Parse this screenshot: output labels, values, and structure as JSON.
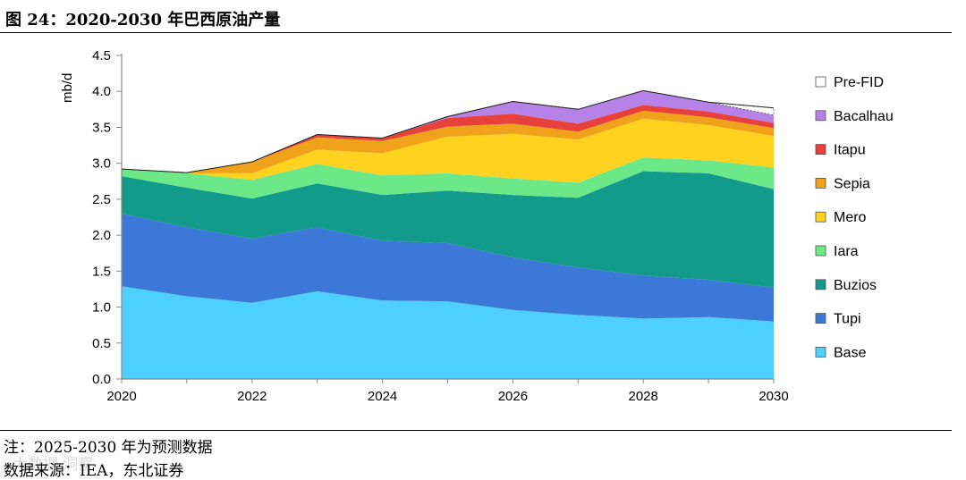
{
  "figure": {
    "title": "图 24：2020-2030 年巴西原油产量",
    "note": "注：2025-2030 年为预测数据",
    "source": "数据来源：IEA，东北证券",
    "watermark": "大数据 洞察"
  },
  "chart_data": {
    "type": "area",
    "stacked": true,
    "title": "",
    "xlabel": "",
    "ylabel": "mb/d",
    "xlim": [
      2020,
      2030
    ],
    "ylim": [
      0,
      4.5
    ],
    "x": [
      2020,
      2021,
      2022,
      2023,
      2024,
      2025,
      2026,
      2027,
      2028,
      2029,
      2030
    ],
    "x_ticks": [
      "2020",
      "2022",
      "2024",
      "2026",
      "2028",
      "2030"
    ],
    "y_ticks": [
      "0.0",
      "0.5",
      "1.0",
      "1.5",
      "2.0",
      "2.5",
      "3.0",
      "3.5",
      "4.0",
      "4.5"
    ],
    "legend_position": "right",
    "series": [
      {
        "name": "Base",
        "color": "#4dd0ff",
        "values": [
          1.29,
          1.15,
          1.06,
          1.22,
          1.09,
          1.08,
          0.96,
          0.89,
          0.84,
          0.86,
          0.8
        ]
      },
      {
        "name": "Tupi",
        "color": "#3c78d8",
        "values": [
          1.01,
          0.96,
          0.89,
          0.89,
          0.83,
          0.81,
          0.73,
          0.66,
          0.6,
          0.52,
          0.47
        ]
      },
      {
        "name": "Buzios",
        "color": "#129a8a",
        "values": [
          0.52,
          0.55,
          0.56,
          0.61,
          0.64,
          0.73,
          0.87,
          0.97,
          1.45,
          1.48,
          1.37
        ]
      },
      {
        "name": "Iara",
        "color": "#6be989",
        "values": [
          0.1,
          0.2,
          0.26,
          0.27,
          0.27,
          0.24,
          0.23,
          0.21,
          0.19,
          0.18,
          0.3
        ]
      },
      {
        "name": "Mero",
        "color": "#ffd21f",
        "values": [
          0.0,
          0.0,
          0.09,
          0.2,
          0.31,
          0.51,
          0.62,
          0.6,
          0.54,
          0.49,
          0.44
        ]
      },
      {
        "name": "Sepia",
        "color": "#f0a31a",
        "values": [
          0.0,
          0.01,
          0.16,
          0.17,
          0.17,
          0.14,
          0.14,
          0.11,
          0.11,
          0.11,
          0.11
        ]
      },
      {
        "name": "Itapu",
        "color": "#e8413b",
        "values": [
          0.0,
          0.0,
          0.0,
          0.04,
          0.04,
          0.12,
          0.14,
          0.11,
          0.08,
          0.08,
          0.07
        ]
      },
      {
        "name": "Bacalhau",
        "color": "#b782e8",
        "values": [
          0.0,
          0.0,
          0.0,
          0.0,
          0.0,
          0.02,
          0.17,
          0.2,
          0.2,
          0.13,
          0.11
        ]
      },
      {
        "name": "Pre-FID",
        "color": "#ffffff",
        "values": [
          0.0,
          0.0,
          0.0,
          0.0,
          0.0,
          0.0,
          0.0,
          0.0,
          0.0,
          0.0,
          0.1
        ]
      }
    ]
  }
}
